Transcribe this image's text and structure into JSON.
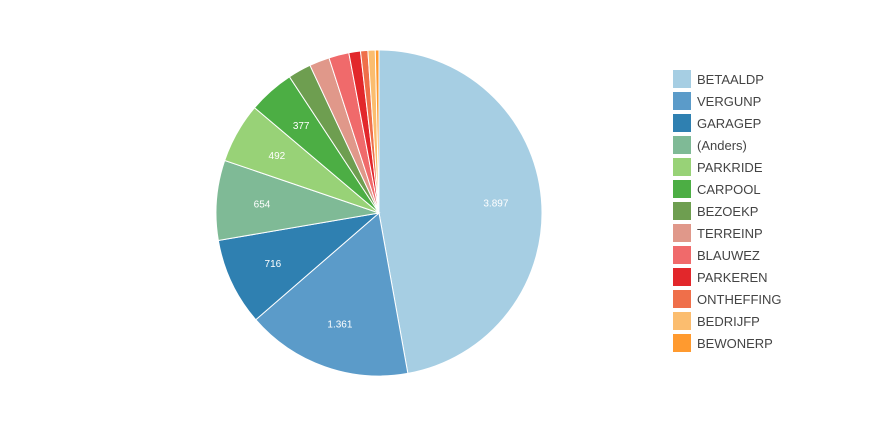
{
  "chart_data": {
    "type": "pie",
    "slices": [
      {
        "label": "BETAALDP",
        "value": 3897,
        "display": "3.897",
        "color": "#a6cee3"
      },
      {
        "label": "VERGUNP",
        "value": 1361,
        "display": "1.361",
        "color": "#5b9bc9"
      },
      {
        "label": "GARAGEP",
        "value": 716,
        "display": "716",
        "color": "#2f80b1"
      },
      {
        "label": "(Anders)",
        "value": 654,
        "display": "654",
        "color": "#7fba96"
      },
      {
        "label": "PARKRIDE",
        "value": 492,
        "display": "492",
        "color": "#98d277"
      },
      {
        "label": "CARPOOL",
        "value": 377,
        "display": "377",
        "color": "#4cae44"
      },
      {
        "label": "BEZOEKP",
        "value": 190,
        "display": "",
        "color": "#6e9e50"
      },
      {
        "label": "TERREINP",
        "value": 165,
        "display": "",
        "color": "#e0988a"
      },
      {
        "label": "BLAUWEZ",
        "value": 165,
        "display": "",
        "color": "#f06a6b"
      },
      {
        "label": "PARKEREN",
        "value": 95,
        "display": "",
        "color": "#e2272b"
      },
      {
        "label": "ONTHEFFING",
        "value": 60,
        "display": "",
        "color": "#ef6f4a"
      },
      {
        "label": "BEDRIJFP",
        "value": 60,
        "display": "",
        "color": "#fbbd6f"
      },
      {
        "label": "BEWONERP",
        "value": 30,
        "display": "",
        "color": "#ff9a2f"
      }
    ],
    "legend_position": "right"
  }
}
